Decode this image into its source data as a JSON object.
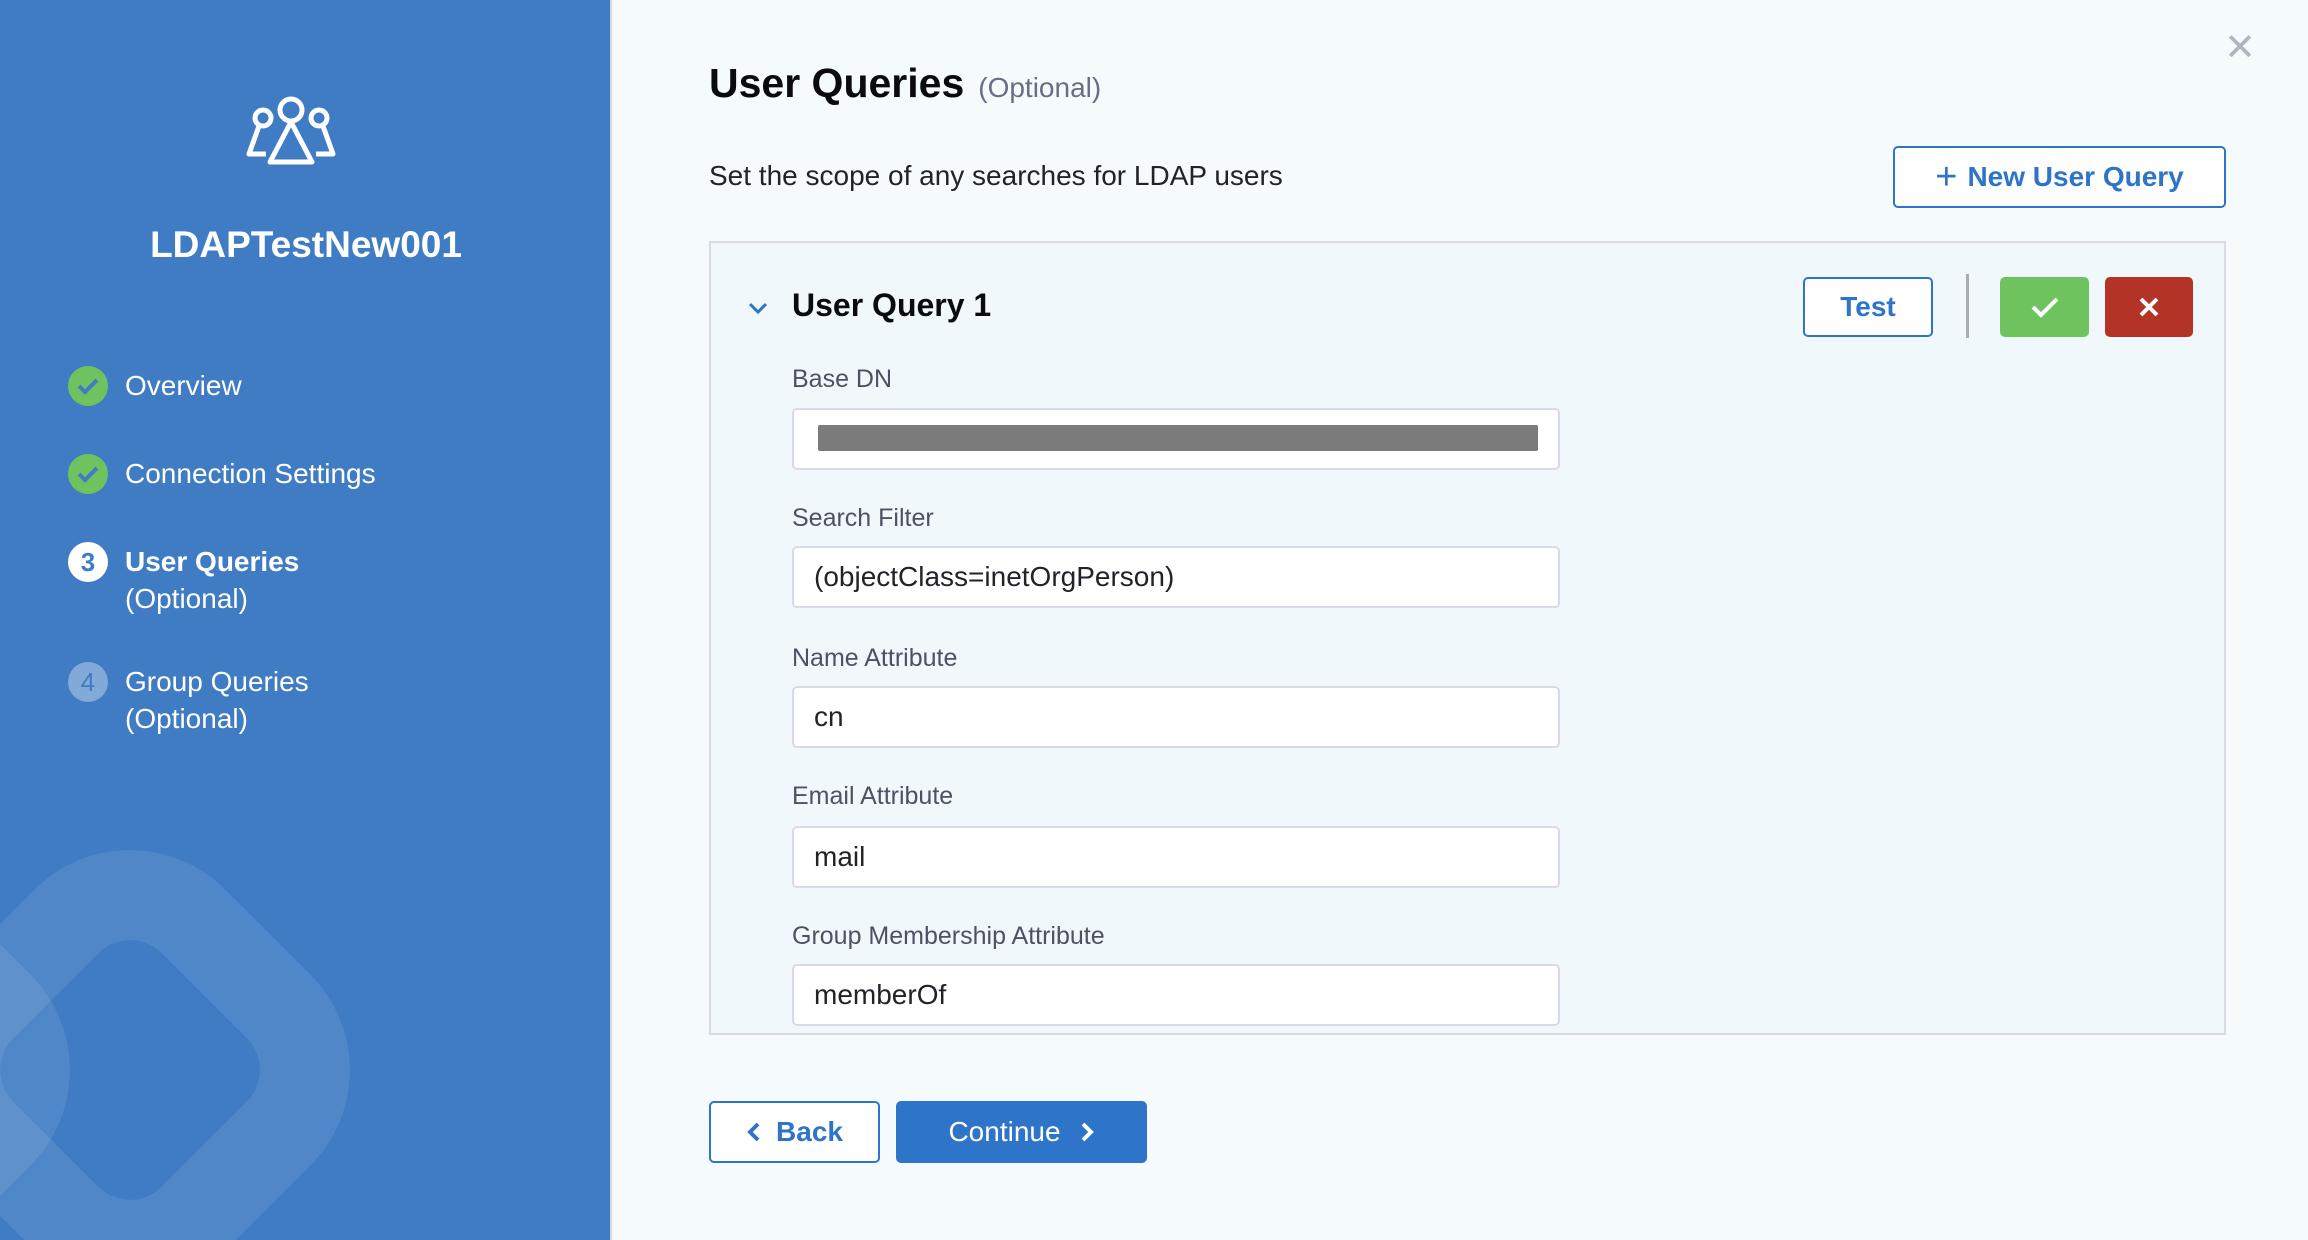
{
  "sidebar": {
    "title": "LDAPTestNew001",
    "logo_icon": "users-group-icon",
    "steps": [
      {
        "label": "Overview",
        "status": "complete",
        "icon": "check-circle-icon"
      },
      {
        "label": "Connection Settings",
        "status": "complete",
        "icon": "check-circle-icon"
      },
      {
        "number": "3",
        "label": "User Queries",
        "sublabel": "(Optional)",
        "status": "active"
      },
      {
        "number": "4",
        "label": "Group Queries",
        "sublabel": "(Optional)",
        "status": "pending"
      }
    ]
  },
  "main": {
    "title": "User Queries",
    "title_optional": "(Optional)",
    "subtitle": "Set the scope of any searches for LDAP users",
    "new_query_label": "New User Query",
    "query": {
      "title": "User Query 1",
      "test_label": "Test",
      "fields": [
        {
          "label": "Base DN",
          "value": ""
        },
        {
          "label": "Search Filter",
          "value": "(objectClass=inetOrgPerson)"
        },
        {
          "label": "Name Attribute",
          "value": "cn"
        },
        {
          "label": "Email Attribute",
          "value": "mail"
        },
        {
          "label": "Group Membership Attribute",
          "value": "memberOf"
        }
      ]
    },
    "back_label": "Back",
    "continue_label": "Continue"
  },
  "colors": {
    "sidebar": "#3f7cc4",
    "primary": "#2e74c9",
    "success": "#6fc35f",
    "danger": "#b33327"
  }
}
